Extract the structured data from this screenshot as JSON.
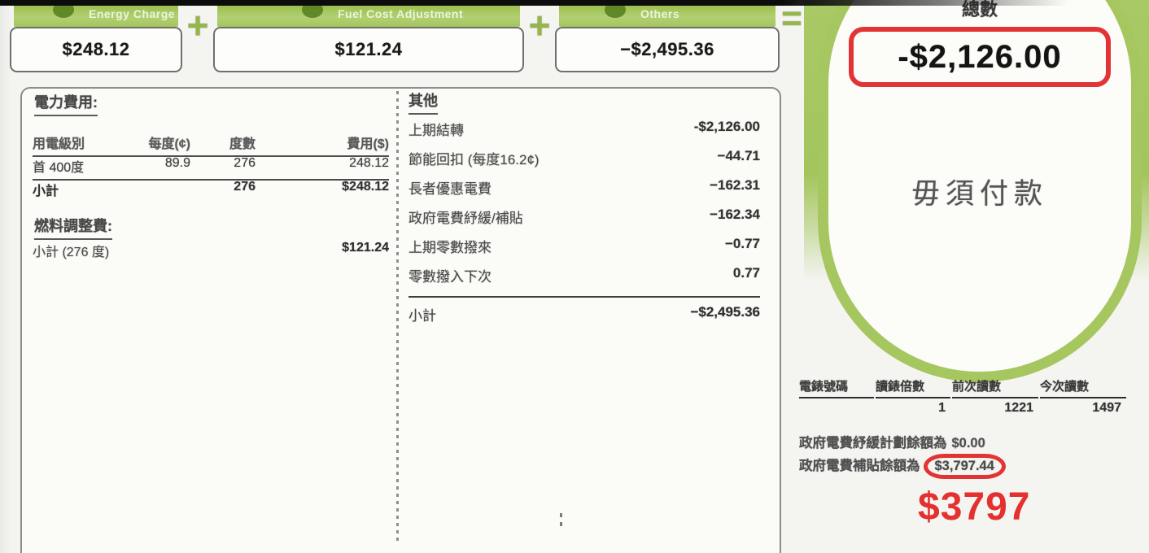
{
  "colors": {
    "brand_green": "#a6c75f",
    "annotation_red": "#e23434"
  },
  "operators": {
    "plus": "+",
    "equals": "="
  },
  "summary_boxes": [
    {
      "label": "Energy Charge",
      "amount": "$248.12"
    },
    {
      "label": "Fuel Cost Adjustment",
      "amount": "$121.24"
    },
    {
      "label": "Others",
      "amount": "−$2,495.36"
    }
  ],
  "electricity": {
    "title": "電力費用:",
    "headers": [
      "用電級別",
      "每度(¢)",
      "度數",
      "費用($)"
    ],
    "row": {
      "tier": "首 400度",
      "rate": "89.9",
      "units": "276",
      "charge": "248.12"
    },
    "subtotal": {
      "label": "小計",
      "units": "276",
      "amount": "$248.12"
    }
  },
  "fuel": {
    "title": "燃料調整費:",
    "subtotal_label": "小計 (276 度)",
    "amount": "$121.24"
  },
  "others": {
    "title": "其他",
    "rows": [
      {
        "label": "上期結轉",
        "value": "-$2,126.00"
      },
      {
        "label": "節能回扣 (每度16.2¢)",
        "value": "−44.71"
      },
      {
        "label": "長者優惠電費",
        "value": "−162.31"
      },
      {
        "label": "政府電費紓緩/補貼",
        "value": "−162.34"
      },
      {
        "label": "上期零數撥來",
        "value": "−0.77"
      },
      {
        "label": "零數撥入下次",
        "value": "0.77"
      }
    ],
    "subtotal": {
      "label": "小計",
      "value": "−$2,495.36"
    }
  },
  "total_panel": {
    "title": "總數",
    "amount": "-$2,126.00",
    "note": "毋須付款"
  },
  "meter": {
    "headers": [
      "電錶號碼",
      "讀錶倍數",
      "前次讀數",
      "今次讀數"
    ],
    "values": [
      "",
      "1",
      "1221",
      "1497"
    ]
  },
  "footnotes": {
    "line1": {
      "text": "政府電費紓緩計劃餘額為",
      "amount": "$0.00"
    },
    "line2": {
      "text": "政府電費補貼餘額為",
      "amount": "$3,797.44"
    }
  },
  "annotation": "$3797"
}
